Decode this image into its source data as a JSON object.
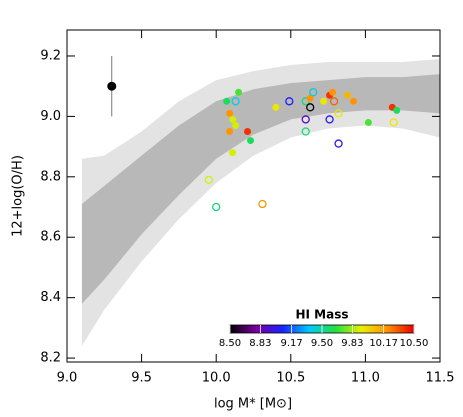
{
  "chart_data": {
    "type": "scatter",
    "x_label": "log M* [M⊙]",
    "y_label": "12+log(O/H)",
    "xlim": [
      9.0,
      11.5
    ],
    "ylim": [
      8.187,
      9.286
    ],
    "xticks": [
      {
        "value": 9.0,
        "label": "9.0"
      },
      {
        "value": 9.5,
        "label": "9.5"
      },
      {
        "value": 10.0,
        "label": "10.0"
      },
      {
        "value": 10.5,
        "label": "10.5"
      },
      {
        "value": 11.0,
        "label": "11.0"
      },
      {
        "value": 11.5,
        "label": "11.5"
      }
    ],
    "yticks": [
      {
        "value": 8.2,
        "label": "8.2"
      },
      {
        "value": 8.4,
        "label": "8.4"
      },
      {
        "value": 8.6,
        "label": "8.6"
      },
      {
        "value": 8.8,
        "label": "8.8"
      },
      {
        "value": 9.0,
        "label": "9.0"
      },
      {
        "value": 9.2,
        "label": "9.2"
      }
    ],
    "bands": [
      {
        "color": "#e3e3e3",
        "x": [
          9.1,
          9.25,
          9.5,
          9.75,
          10.0,
          10.25,
          10.5,
          10.75,
          11.0,
          11.25,
          11.5
        ],
        "upper": [
          8.86,
          8.87,
          8.95,
          9.05,
          9.12,
          9.15,
          9.17,
          9.18,
          9.18,
          9.18,
          9.19
        ],
        "lower": [
          8.24,
          8.36,
          8.52,
          8.66,
          8.78,
          8.87,
          8.93,
          8.96,
          8.97,
          8.96,
          8.93
        ]
      },
      {
        "color": "#b8b8b8",
        "x": [
          9.1,
          9.25,
          9.5,
          9.75,
          10.0,
          10.25,
          10.5,
          10.75,
          11.0,
          11.25,
          11.5
        ],
        "upper": [
          8.71,
          8.77,
          8.87,
          8.97,
          9.05,
          9.09,
          9.11,
          9.12,
          9.13,
          9.13,
          9.14
        ],
        "lower": [
          8.38,
          8.46,
          8.61,
          8.74,
          8.86,
          8.94,
          8.99,
          9.01,
          9.02,
          9.02,
          9.01
        ]
      }
    ],
    "errorbar": {
      "x": 9.3,
      "y": 9.1,
      "error": 0.1,
      "color": "#000000"
    },
    "points": {
      "x": [
        10.07,
        10.15,
        10.13,
        10.09,
        10.11,
        10.09,
        10.13,
        10.21,
        10.23,
        10.11,
        9.95,
        10.0,
        10.31,
        10.4,
        10.49,
        10.6,
        10.6,
        10.6,
        10.63,
        10.63,
        10.65,
        10.76,
        10.78,
        10.72,
        10.79,
        10.76,
        10.82,
        10.82,
        10.88,
        10.92,
        11.02,
        11.18,
        11.21,
        11.19
      ],
      "y": [
        9.05,
        9.08,
        9.05,
        9.01,
        8.99,
        8.95,
        8.97,
        8.95,
        8.92,
        8.88,
        8.79,
        8.7,
        8.71,
        9.03,
        9.05,
        9.05,
        8.99,
        8.95,
        9.03,
        9.06,
        9.08,
        9.07,
        9.08,
        9.05,
        9.05,
        8.99,
        9.01,
        8.91,
        9.07,
        9.05,
        8.98,
        9.03,
        9.02,
        8.98
      ],
      "hi_mass": [
        9.6,
        9.7,
        9.4,
        10.2,
        9.9,
        10.2,
        9.9,
        10.4,
        9.6,
        9.9,
        9.9,
        9.55,
        10.2,
        9.95,
        9.05,
        9.55,
        8.9,
        9.55,
        8.5,
        10.2,
        9.4,
        10.4,
        10.2,
        9.95,
        10.3,
        9.0,
        9.95,
        9.0,
        10.1,
        10.2,
        9.7,
        10.4,
        9.6,
        9.95
      ],
      "filled": [
        true,
        true,
        false,
        true,
        true,
        true,
        true,
        true,
        true,
        true,
        false,
        false,
        false,
        true,
        false,
        false,
        false,
        false,
        false,
        true,
        false,
        true,
        true,
        true,
        false,
        false,
        false,
        false,
        true,
        true,
        true,
        true,
        true,
        false
      ]
    },
    "colorbar": {
      "title": "HI Mass",
      "clim": [
        8.5,
        10.5
      ],
      "colormap": [
        "#000000",
        "#7a00a0",
        "#1a20ff",
        "#00c8ff",
        "#20e040",
        "#e8f000",
        "#ff9000",
        "#e80000"
      ],
      "ticks": [
        {
          "value": 8.5,
          "label": "8.50"
        },
        {
          "value": 8.83,
          "label": "8.83"
        },
        {
          "value": 9.17,
          "label": "9.17"
        },
        {
          "value": 9.5,
          "label": "9.50"
        },
        {
          "value": 9.83,
          "label": "9.83"
        },
        {
          "value": 10.17,
          "label": "10.17"
        },
        {
          "value": 10.5,
          "label": "10.50"
        }
      ]
    }
  }
}
